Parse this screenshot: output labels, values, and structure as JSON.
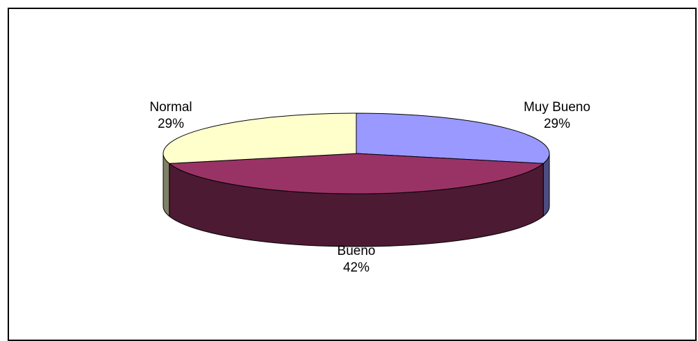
{
  "chart_data": {
    "type": "pie",
    "style": "3d",
    "title": "",
    "categories": [
      "Muy Bueno",
      "Bueno",
      "Normal"
    ],
    "values": [
      29,
      42,
      29
    ],
    "labels": [
      "29%",
      "42%",
      "29%"
    ],
    "colors": {
      "Muy Bueno": "#9999ff",
      "Bueno": "#993366",
      "Normal": "#ffffcc"
    },
    "legend": "none"
  }
}
